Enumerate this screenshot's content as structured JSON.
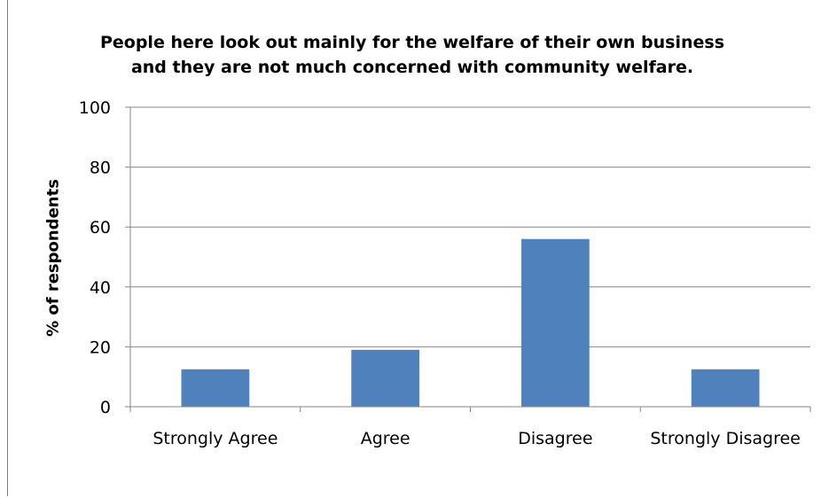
{
  "chart_data": {
    "type": "bar",
    "title_lines": [
      "People here look out mainly for the welfare of their own business",
      "and they are not much concerned with community welfare."
    ],
    "xlabel": "",
    "ylabel": "% of respondents",
    "categories": [
      "Strongly Agree",
      "Agree",
      "Disagree",
      "Strongly Disagree"
    ],
    "values": [
      12.5,
      19,
      56,
      12.5
    ],
    "ylim": [
      0,
      100
    ],
    "yticks": [
      0,
      20,
      40,
      60,
      80,
      100
    ],
    "ytick_labels": [
      "0",
      "20",
      "40",
      "60",
      "80",
      "100"
    ],
    "grid": true,
    "legend": "none",
    "bar_color": "#4f81bd",
    "grid_color": "#868686"
  }
}
